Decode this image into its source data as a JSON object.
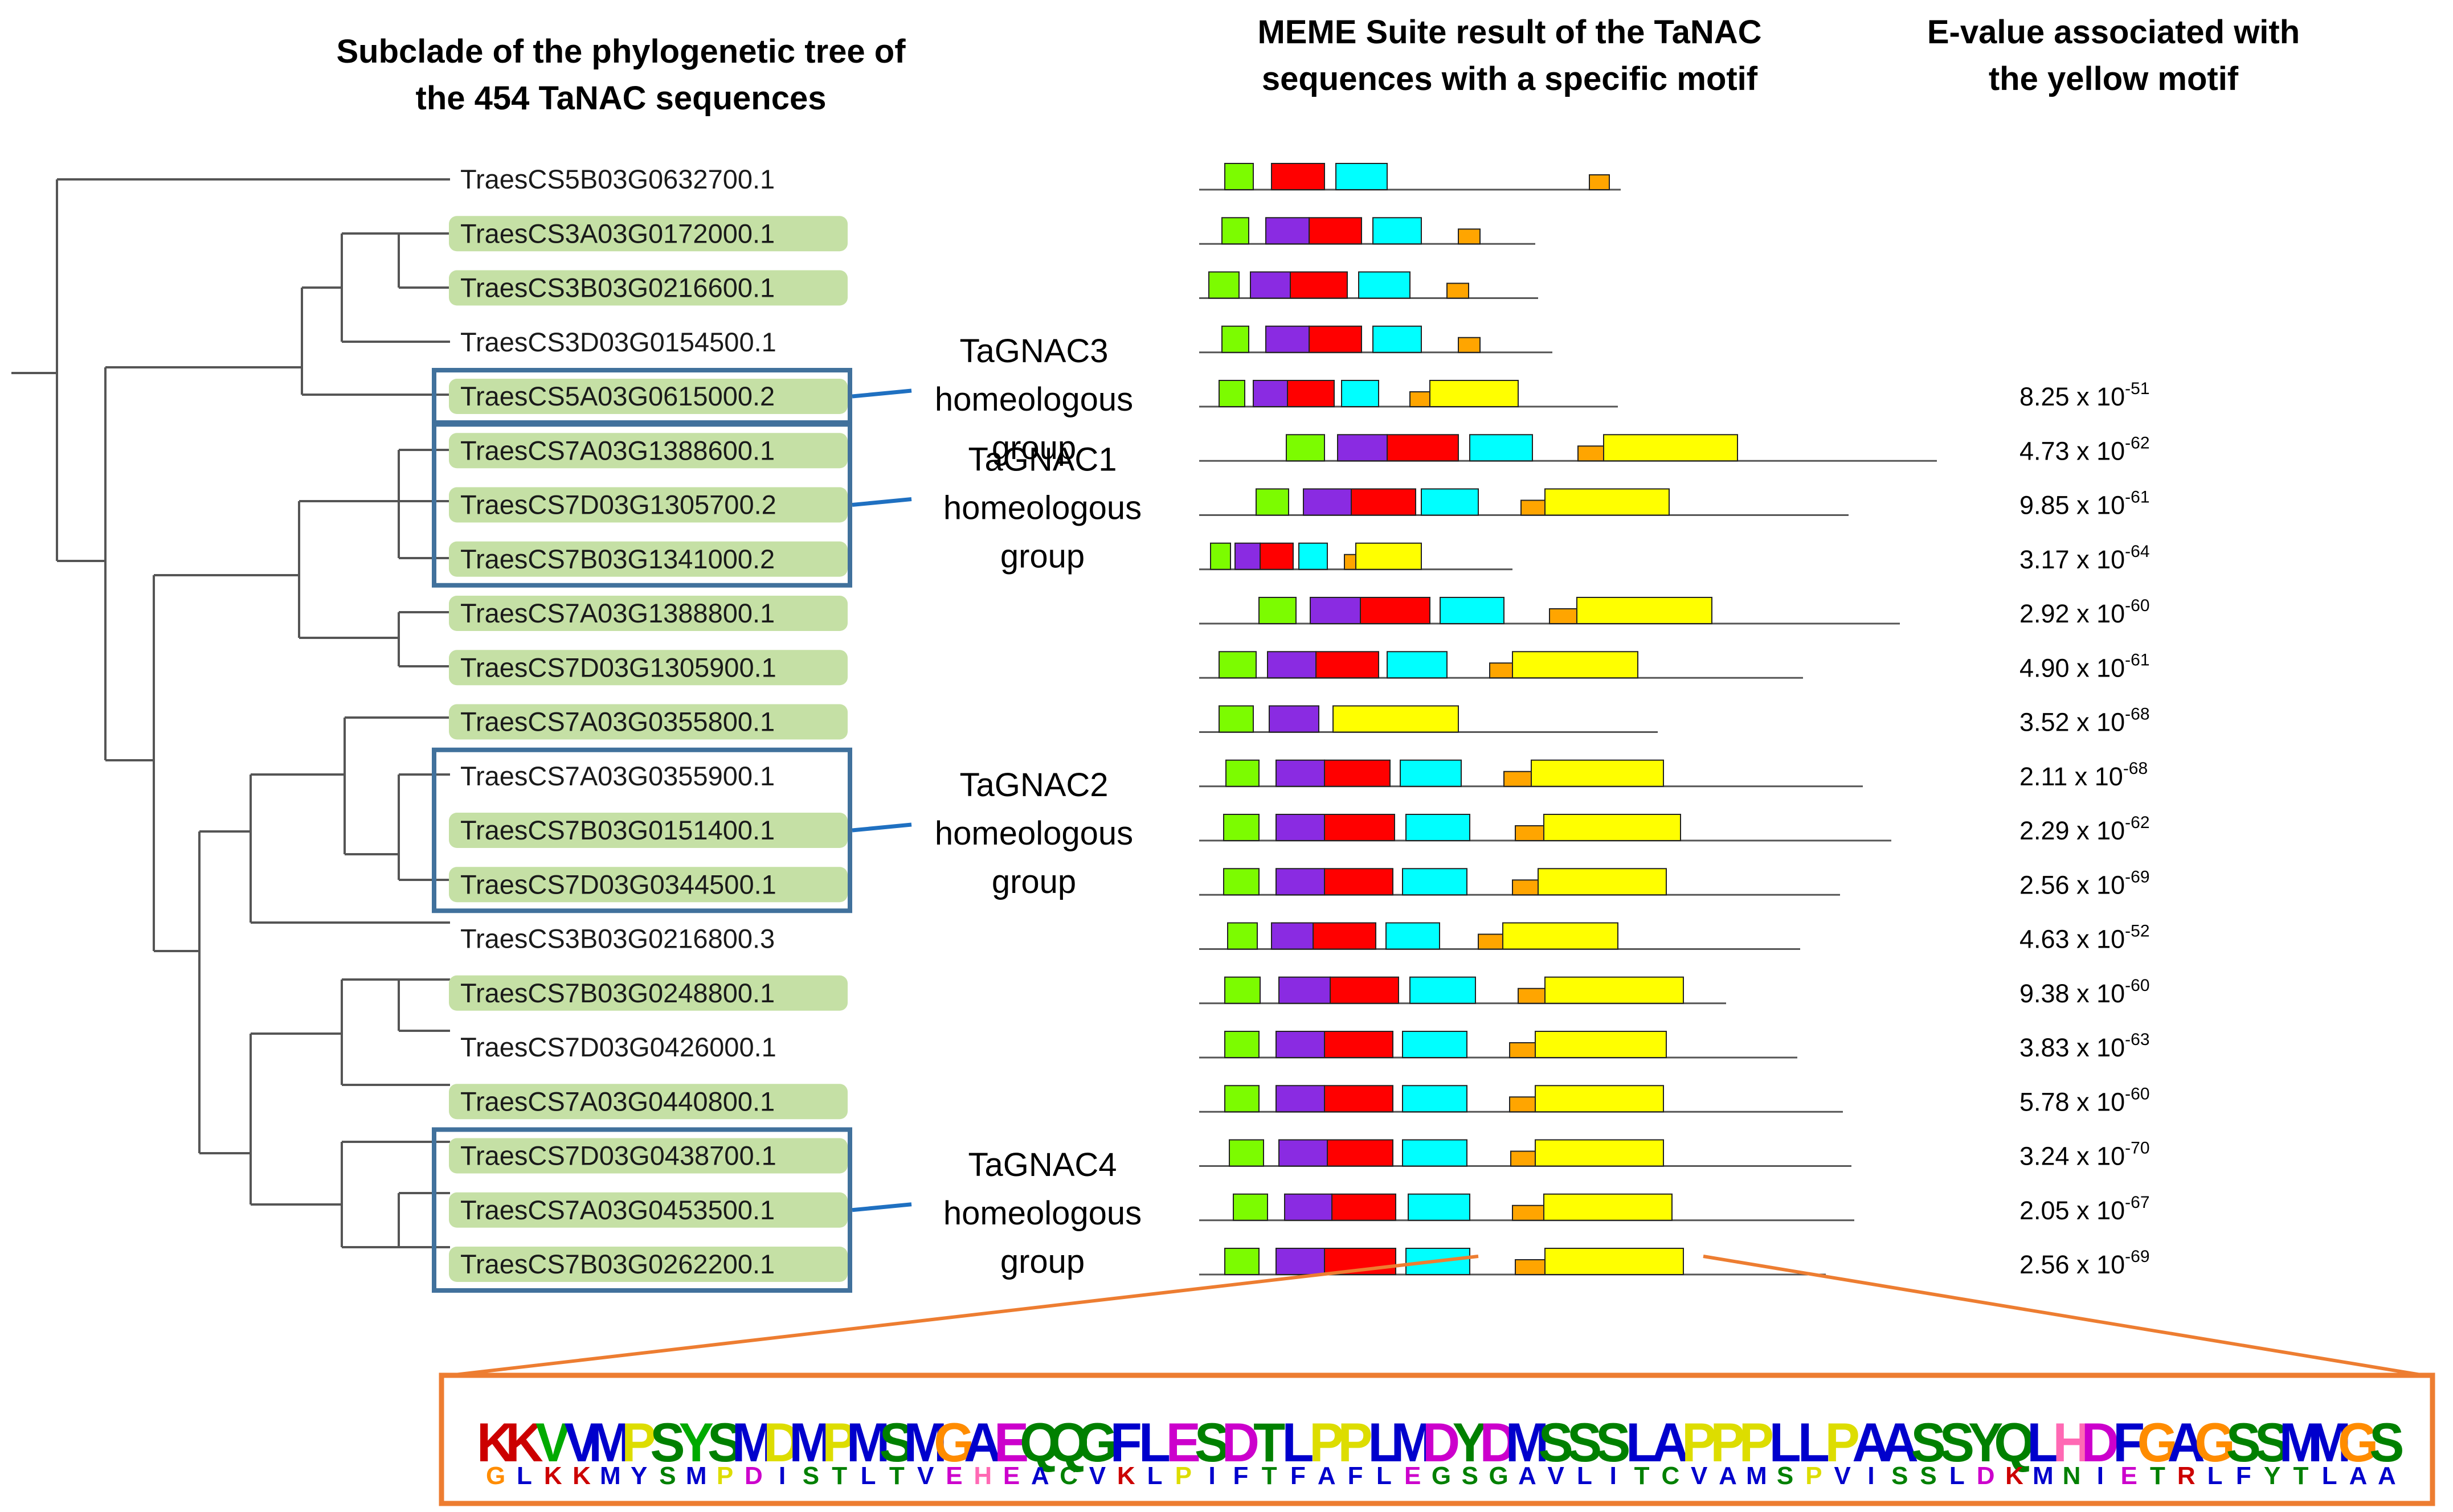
{
  "headers": {
    "tree": "Subclade of the phylogenetic tree of the 454 TaNAC sequences",
    "meme": "MEME Suite result  of the TaNAC sequences with a specific motif",
    "evalue": "E-value associated with the yellow motif"
  },
  "sequences": [
    {
      "id": "TraesCS5B03G0632700.1",
      "highlight": false,
      "evalue": ""
    },
    {
      "id": "TraesCS3A03G0172000.1",
      "highlight": true,
      "evalue": ""
    },
    {
      "id": "TraesCS3B03G0216600.1",
      "highlight": true,
      "evalue": ""
    },
    {
      "id": "TraesCS3D03G0154500.1",
      "highlight": false,
      "evalue": ""
    },
    {
      "id": "TraesCS5A03G0615000.2",
      "highlight": true,
      "evalue": "8.25 x 10",
      "exp": "-51"
    },
    {
      "id": "TraesCS7A03G1388600.1",
      "highlight": true,
      "evalue": "4.73 x 10",
      "exp": "-62"
    },
    {
      "id": "TraesCS7D03G1305700.2",
      "highlight": true,
      "evalue": "9.85 x 10",
      "exp": "-61"
    },
    {
      "id": "TraesCS7B03G1341000.2",
      "highlight": true,
      "evalue": "3.17 x 10",
      "exp": "-64"
    },
    {
      "id": "TraesCS7A03G1388800.1",
      "highlight": true,
      "evalue": "2.92 x 10",
      "exp": "-60"
    },
    {
      "id": "TraesCS7D03G1305900.1",
      "highlight": true,
      "evalue": "4.90 x 10",
      "exp": "-61"
    },
    {
      "id": "TraesCS7A03G0355800.1",
      "highlight": true,
      "evalue": "3.52 x 10",
      "exp": "-68"
    },
    {
      "id": "TraesCS7A03G0355900.1",
      "highlight": false,
      "evalue": "2.11 x 10",
      "exp": "-68"
    },
    {
      "id": "TraesCS7B03G0151400.1",
      "highlight": true,
      "evalue": "2.29 x 10",
      "exp": "-62"
    },
    {
      "id": "TraesCS7D03G0344500.1",
      "highlight": true,
      "evalue": "2.56 x 10",
      "exp": "-69"
    },
    {
      "id": "TraesCS3B03G0216800.3",
      "highlight": false,
      "evalue": "4.63 x 10",
      "exp": "-52"
    },
    {
      "id": "TraesCS7B03G0248800.1",
      "highlight": true,
      "evalue": "9.38 x 10",
      "exp": "-60"
    },
    {
      "id": "TraesCS7D03G0426000.1",
      "highlight": false,
      "evalue": "3.83 x 10",
      "exp": "-63"
    },
    {
      "id": "TraesCS7A03G0440800.1",
      "highlight": true,
      "evalue": "5.78 x 10",
      "exp": "-60"
    },
    {
      "id": "TraesCS7D03G0438700.1",
      "highlight": true,
      "evalue": "3.24 x 10",
      "exp": "-70"
    },
    {
      "id": "TraesCS7A03G0453500.1",
      "highlight": true,
      "evalue": "2.05 x 10",
      "exp": "-67"
    },
    {
      "id": "TraesCS7B03G0262200.1",
      "highlight": true,
      "evalue": "2.56 x 10",
      "exp": "-69"
    }
  ],
  "groups": [
    {
      "name": "TaGNAC3",
      "subtitle": "homeologous",
      "word": "group",
      "members": [
        4
      ]
    },
    {
      "name": "TaGNAC1",
      "subtitle": "homeologous",
      "word": "group",
      "members": [
        5,
        6,
        7
      ]
    },
    {
      "name": "TaGNAC2",
      "subtitle": "homeologous",
      "word": "group",
      "members": [
        11,
        12,
        13
      ]
    },
    {
      "name": "TaGNAC4",
      "subtitle": "homeologous",
      "word": "group",
      "members": [
        18,
        19,
        20
      ]
    }
  ],
  "colors": {
    "leaf_highlight": "#c5e0a5",
    "group_box": "#41719c",
    "callout_line": "#1f70c1",
    "zoom_line": "#ed7d31",
    "motif_green": "#7cfc00",
    "motif_purple": "#8a2be2",
    "motif_red": "#ff0000",
    "motif_cyan": "#00ffff",
    "motif_orange": "#ffa500",
    "motif_yellow": "#ffff00"
  },
  "logo": {
    "letters": [
      {
        "top": "K",
        "bottom": "G",
        "c1": "#cc0000",
        "c2": "#ff8c00"
      },
      {
        "top": "K",
        "bottom": "L",
        "c1": "#cc0000",
        "c2": "#0000cc"
      },
      {
        "top": "V",
        "bottom": "K",
        "c1": "#00aa00",
        "c2": "#cc0000"
      },
      {
        "top": "V",
        "bottom": "K",
        "c1": "#0000cc",
        "c2": "#cc0000"
      },
      {
        "top": "M",
        "bottom": "M",
        "c1": "#0000cc",
        "c2": "#0000cc"
      },
      {
        "top": "P",
        "bottom": "Y",
        "c1": "#dddd00",
        "c2": "#0000cc"
      },
      {
        "top": "S",
        "bottom": "S",
        "c1": "#008000",
        "c2": "#008000"
      },
      {
        "top": "Y",
        "bottom": "M",
        "c1": "#00aa00",
        "c2": "#0000cc"
      },
      {
        "top": "S",
        "bottom": "P",
        "c1": "#008000",
        "c2": "#dddd00"
      },
      {
        "top": "M",
        "bottom": "D",
        "c1": "#0000cc",
        "c2": "#cc00cc"
      },
      {
        "top": "D",
        "bottom": "I",
        "c1": "#dddd00",
        "c2": "#0000cc"
      },
      {
        "top": "M",
        "bottom": "S",
        "c1": "#0000cc",
        "c2": "#008000"
      },
      {
        "top": "P",
        "bottom": "T",
        "c1": "#dddd00",
        "c2": "#008000"
      },
      {
        "top": "M",
        "bottom": "L",
        "c1": "#0000cc",
        "c2": "#0000cc"
      },
      {
        "top": "S",
        "bottom": "T",
        "c1": "#008000",
        "c2": "#008000"
      },
      {
        "top": "M",
        "bottom": "V",
        "c1": "#0000cc",
        "c2": "#0000cc"
      },
      {
        "top": "G",
        "bottom": "E",
        "c1": "#ff8c00",
        "c2": "#cc00cc"
      },
      {
        "top": "A",
        "bottom": "H",
        "c1": "#0000cc",
        "c2": "#ff69b4"
      },
      {
        "top": "E",
        "bottom": "E",
        "c1": "#cc00cc",
        "c2": "#cc00cc"
      },
      {
        "top": "Q",
        "bottom": "A",
        "c1": "#008000",
        "c2": "#0000cc"
      },
      {
        "top": "Q",
        "bottom": "C",
        "c1": "#008000",
        "c2": "#008000"
      },
      {
        "top": "G",
        "bottom": "V",
        "c1": "#008000",
        "c2": "#0000cc"
      },
      {
        "top": "F",
        "bottom": "K",
        "c1": "#0000cc",
        "c2": "#cc0000"
      },
      {
        "top": "L",
        "bottom": "L",
        "c1": "#0000cc",
        "c2": "#0000cc"
      },
      {
        "top": "E",
        "bottom": "P",
        "c1": "#cc00cc",
        "c2": "#dddd00"
      },
      {
        "top": "S",
        "bottom": "I",
        "c1": "#008000",
        "c2": "#0000cc"
      },
      {
        "top": "D",
        "bottom": "F",
        "c1": "#cc00cc",
        "c2": "#0000cc"
      },
      {
        "top": "T",
        "bottom": "T",
        "c1": "#008000",
        "c2": "#008000"
      },
      {
        "top": "L",
        "bottom": "F",
        "c1": "#0000cc",
        "c2": "#0000cc"
      },
      {
        "top": "P",
        "bottom": "A",
        "c1": "#dddd00",
        "c2": "#0000cc"
      },
      {
        "top": "P",
        "bottom": "F",
        "c1": "#dddd00",
        "c2": "#0000cc"
      },
      {
        "top": "L",
        "bottom": "L",
        "c1": "#0000cc",
        "c2": "#0000cc"
      },
      {
        "top": "M",
        "bottom": "E",
        "c1": "#0000cc",
        "c2": "#cc00cc"
      },
      {
        "top": "D",
        "bottom": "G",
        "c1": "#cc00cc",
        "c2": "#008000"
      },
      {
        "top": "Y",
        "bottom": "S",
        "c1": "#008000",
        "c2": "#008000"
      },
      {
        "top": "D",
        "bottom": "G",
        "c1": "#cc00cc",
        "c2": "#008000"
      },
      {
        "top": "M",
        "bottom": "A",
        "c1": "#0000cc",
        "c2": "#0000cc"
      },
      {
        "top": "S",
        "bottom": "V",
        "c1": "#008000",
        "c2": "#0000cc"
      },
      {
        "top": "S",
        "bottom": "L",
        "c1": "#008000",
        "c2": "#0000cc"
      },
      {
        "top": "S",
        "bottom": "I",
        "c1": "#008000",
        "c2": "#0000cc"
      },
      {
        "top": "L",
        "bottom": "T",
        "c1": "#0000cc",
        "c2": "#008000"
      },
      {
        "top": "A",
        "bottom": "C",
        "c1": "#0000cc",
        "c2": "#008000"
      },
      {
        "top": "P",
        "bottom": "V",
        "c1": "#dddd00",
        "c2": "#0000cc"
      },
      {
        "top": "P",
        "bottom": "A",
        "c1": "#dddd00",
        "c2": "#0000cc"
      },
      {
        "top": "P",
        "bottom": "M",
        "c1": "#dddd00",
        "c2": "#0000cc"
      },
      {
        "top": "L",
        "bottom": "S",
        "c1": "#0000cc",
        "c2": "#008000"
      },
      {
        "top": "L",
        "bottom": "P",
        "c1": "#0000cc",
        "c2": "#dddd00"
      },
      {
        "top": "P",
        "bottom": "V",
        "c1": "#dddd00",
        "c2": "#0000cc"
      },
      {
        "top": "A",
        "bottom": "I",
        "c1": "#0000cc",
        "c2": "#0000cc"
      },
      {
        "top": "A",
        "bottom": "S",
        "c1": "#0000cc",
        "c2": "#008000"
      },
      {
        "top": "S",
        "bottom": "S",
        "c1": "#008000",
        "c2": "#008000"
      },
      {
        "top": "S",
        "bottom": "L",
        "c1": "#008000",
        "c2": "#0000cc"
      },
      {
        "top": "Y",
        "bottom": "D",
        "c1": "#008000",
        "c2": "#cc00cc"
      },
      {
        "top": "Q",
        "bottom": "K",
        "c1": "#008000",
        "c2": "#cc0000"
      },
      {
        "top": "L",
        "bottom": "M",
        "c1": "#0000cc",
        "c2": "#0000cc"
      },
      {
        "top": "H",
        "bottom": "N",
        "c1": "#ff69b4",
        "c2": "#008000"
      },
      {
        "top": "D",
        "bottom": "I",
        "c1": "#cc00cc",
        "c2": "#0000cc"
      },
      {
        "top": "F",
        "bottom": "E",
        "c1": "#0000cc",
        "c2": "#cc00cc"
      },
      {
        "top": "G",
        "bottom": "T",
        "c1": "#ff8c00",
        "c2": "#008000"
      },
      {
        "top": "A",
        "bottom": "R",
        "c1": "#0000cc",
        "c2": "#cc0000"
      },
      {
        "top": "G",
        "bottom": "L",
        "c1": "#ff8c00",
        "c2": "#0000cc"
      },
      {
        "top": "S",
        "bottom": "F",
        "c1": "#008000",
        "c2": "#0000cc"
      },
      {
        "top": "S",
        "bottom": "Y",
        "c1": "#008000",
        "c2": "#008000"
      },
      {
        "top": "M",
        "bottom": "T",
        "c1": "#0000cc",
        "c2": "#008000"
      },
      {
        "top": "M",
        "bottom": "L",
        "c1": "#0000cc",
        "c2": "#0000cc"
      },
      {
        "top": "G",
        "bottom": "A",
        "c1": "#ff8c00",
        "c2": "#0000cc"
      },
      {
        "top": "S",
        "bottom": "A",
        "c1": "#008000",
        "c2": "#0000cc"
      }
    ]
  }
}
